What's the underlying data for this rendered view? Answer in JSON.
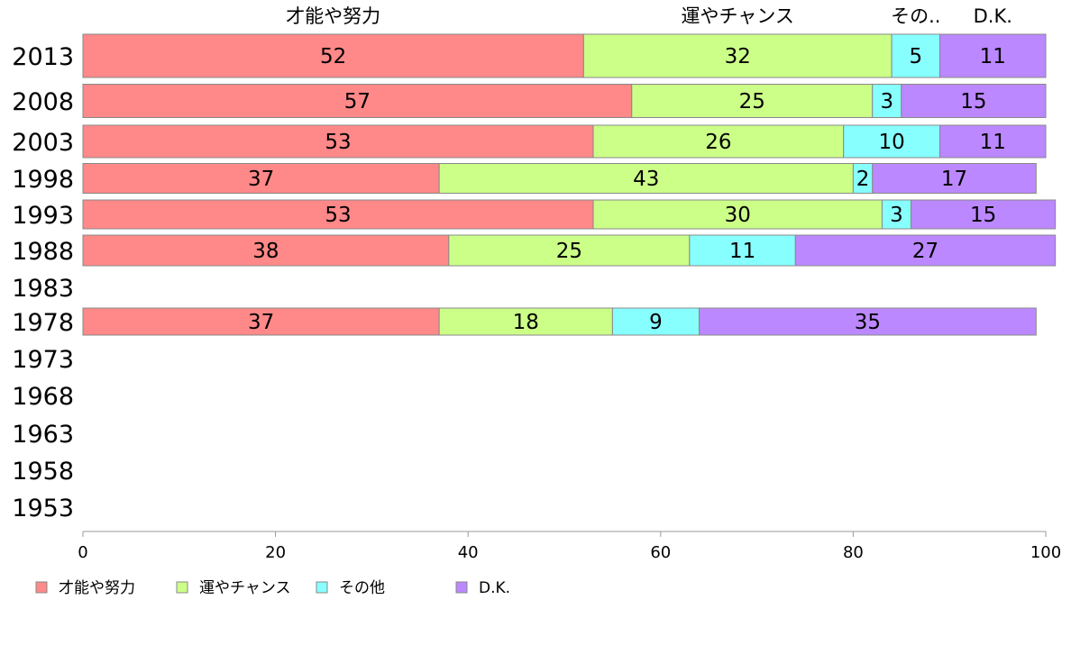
{
  "chart_data": {
    "type": "bar",
    "orientation": "horizontal",
    "stacked": true,
    "categories": [
      "2013",
      "2008",
      "2003",
      "1998",
      "1993",
      "1988",
      "1983",
      "1978",
      "1973",
      "1968",
      "1963",
      "1958",
      "1953"
    ],
    "series": [
      {
        "name": "才能や努力",
        "color": "#ff8888",
        "values": [
          52,
          57,
          53,
          37,
          53,
          38,
          null,
          37,
          null,
          null,
          null,
          null,
          null
        ]
      },
      {
        "name": "運やチャンス",
        "color": "#ccff88",
        "values": [
          32,
          25,
          26,
          43,
          30,
          25,
          null,
          18,
          null,
          null,
          null,
          null,
          null
        ]
      },
      {
        "name": "その他",
        "color": "#88ffff",
        "values": [
          5,
          3,
          10,
          2,
          3,
          11,
          null,
          9,
          null,
          null,
          null,
          null,
          null
        ]
      },
      {
        "name": "D.K.",
        "color": "#bb88ff",
        "values": [
          11,
          15,
          11,
          17,
          15,
          27,
          null,
          35,
          null,
          null,
          null,
          null,
          null
        ]
      }
    ],
    "top_labels": [
      "才能や努力",
      "運やチャンス",
      "その..",
      "D.K."
    ],
    "xlim": [
      0,
      100
    ],
    "xticks": [
      0,
      20,
      40,
      60,
      80,
      100
    ],
    "grid": false,
    "legend_position": "bottom"
  }
}
